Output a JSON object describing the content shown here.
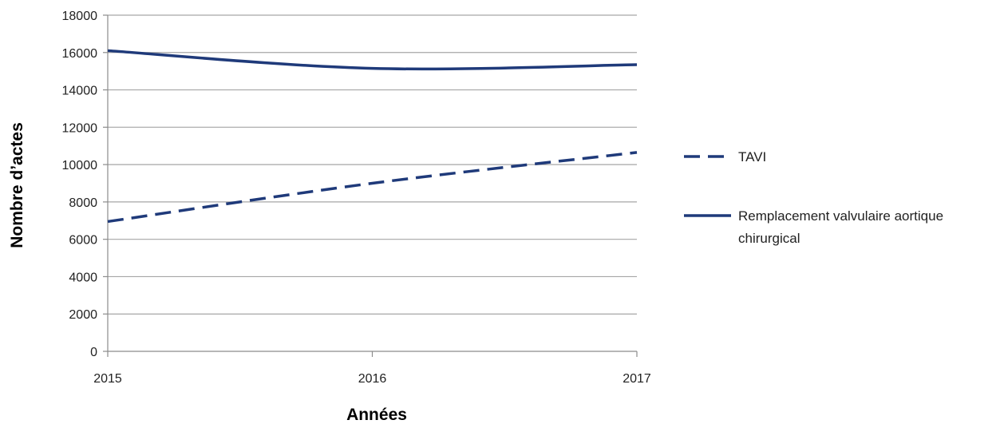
{
  "chart_data": {
    "type": "line",
    "title": "",
    "xlabel": "Années",
    "ylabel": "Nombre d’actes",
    "x": [
      2015,
      2016,
      2017
    ],
    "xlim": [
      2015,
      2017
    ],
    "ylim": [
      0,
      18000
    ],
    "yticks": [
      0,
      2000,
      4000,
      6000,
      8000,
      10000,
      12000,
      14000,
      16000,
      18000
    ],
    "grid": true,
    "legend_position": "right",
    "series": [
      {
        "name": "TAVI",
        "values": [
          6950,
          9000,
          10650
        ],
        "line_style": "dashed",
        "color": "#1f3a7a"
      },
      {
        "name": "Remplacement valvulaire aortique chirurgical",
        "name_lines": [
          "Remplacement valvulaire aortique",
          "chirurgical"
        ],
        "values": [
          16100,
          15150,
          15350
        ],
        "line_style": "solid",
        "color": "#1f3a7a"
      }
    ]
  }
}
